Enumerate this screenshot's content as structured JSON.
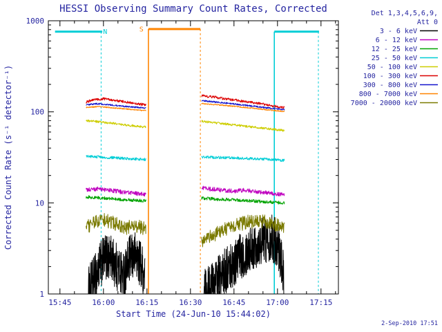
{
  "chart_data": {
    "type": "line",
    "title": "HESSI Observing Summary Count Rates, Corrected",
    "xlabel": "Start Time (24-Jun-10 15:44:02)",
    "ylabel": "Corrected Count Rate (s⁻¹ detector⁻¹)",
    "y_scale": "log",
    "y_domain": [
      1,
      1000
    ],
    "y_major_ticks": [
      "1",
      "10",
      "100",
      "1000"
    ],
    "x_domain": [
      41,
      141
    ],
    "x_unit": "minutes-after-15:00",
    "x_ticks": [
      {
        "t": 45,
        "label": "15:45"
      },
      {
        "t": 60,
        "label": "16:00"
      },
      {
        "t": 75,
        "label": "16:15"
      },
      {
        "t": 90,
        "label": "16:30"
      },
      {
        "t": 105,
        "label": "16:45"
      },
      {
        "t": 120,
        "label": "17:00"
      },
      {
        "t": 135,
        "label": "17:15"
      }
    ],
    "x_minor_step": 5,
    "grid": false,
    "legend": {
      "position": "top-right-outside",
      "header": [
        "Det 1,3,4,5,6,9,",
        "Att 0"
      ]
    },
    "indicators": [
      {
        "name": "night",
        "label": "N",
        "color": "#00cdd6",
        "bar_value": 760,
        "label_t": 60.6,
        "bars": [
          [
            43.3,
            59.6
          ],
          [
            118.9,
            134.3
          ]
        ],
        "lines": [
          {
            "t": 59.2,
            "style": "dashed"
          },
          {
            "t": 118.9,
            "style": "solid"
          },
          {
            "t": 134.1,
            "style": "dashed"
          }
        ]
      },
      {
        "name": "saa",
        "label": "S",
        "color": "#ff8400",
        "bar_value": 810,
        "label_t": 73.1,
        "bars": [
          [
            75.5,
            93.4
          ]
        ],
        "lines": [
          {
            "t": 75.5,
            "style": "solid"
          },
          {
            "t": 93.4,
            "style": "dashed"
          }
        ]
      }
    ],
    "series": [
      {
        "name": "3 - 6 keV",
        "color": "#000000",
        "noise": 0.6,
        "step": 0.06,
        "segments": [
          {
            "t": [
              54.8,
              57,
              59,
              61,
              63,
              65,
              67,
              69,
              71,
              73,
              74.3
            ],
            "v": [
              1.1,
              1.5,
              2.1,
              2.6,
              2.4,
              1.9,
              1.6,
              2.4,
              2.7,
              2.1,
              1.5
            ]
          },
          {
            "t": [
              94.5,
              97,
              100,
              103,
              106,
              109,
              112,
              115,
              118,
              120,
              121.5,
              122.2
            ],
            "v": [
              1.05,
              1.2,
              1.5,
              1.9,
              2.4,
              2.9,
              3.4,
              3.9,
              4.2,
              3.6,
              2.2,
              1.4
            ]
          }
        ]
      },
      {
        "name": "6 - 12 keV",
        "color": "#bf00bf",
        "noise": 0.055,
        "segments": [
          {
            "t": [
              54,
              58,
              62,
              66,
              70,
              74.6
            ],
            "v": [
              13.8,
              14.2,
              13.8,
              13.2,
              12.8,
              12.4
            ]
          },
          {
            "t": [
              93.8,
              97,
              101,
              105,
              109,
              113,
              117,
              120,
              122.3
            ],
            "v": [
              14.6,
              14.2,
              13.8,
              13.5,
              13.8,
              13.2,
              12.8,
              12.5,
              12.2
            ]
          }
        ]
      },
      {
        "name": "12 - 25 keV",
        "color": "#00a300",
        "noise": 0.04,
        "segments": [
          {
            "t": [
              54,
              60,
              66,
              74.6
            ],
            "v": [
              11.6,
              11.3,
              10.9,
              10.5
            ]
          },
          {
            "t": [
              93.8,
              99,
              105,
              111,
              117,
              122.3
            ],
            "v": [
              11.3,
              11.0,
              10.8,
              10.5,
              10.2,
              10.0
            ]
          }
        ]
      },
      {
        "name": "25 - 50 keV",
        "color": "#00cdd6",
        "noise": 0.035,
        "segments": [
          {
            "t": [
              54,
              60,
              67,
              74.6
            ],
            "v": [
              32.5,
              31.8,
              30.8,
              30.0
            ]
          },
          {
            "t": [
              93.8,
              100,
              107,
              114,
              120,
              122.3
            ],
            "v": [
              32.0,
              31.5,
              31.0,
              30.3,
              29.6,
              29.3
            ]
          }
        ]
      },
      {
        "name": "50 - 100 keV",
        "color": "#cdcd00",
        "noise": 0.028,
        "segments": [
          {
            "t": [
              54,
              58,
              63,
              68,
              74.6
            ],
            "v": [
              80,
              78,
              75,
              71.5,
              68
            ]
          },
          {
            "t": [
              93.8,
              98,
              103,
              109,
              115,
              120,
              122.3
            ],
            "v": [
              79,
              76,
              73,
              69.5,
              66,
              63.5,
              62
            ]
          }
        ]
      },
      {
        "name": "100 - 300 keV",
        "color": "#dc0000",
        "noise": 0.032,
        "segments": [
          {
            "t": [
              54,
              56.5,
              60,
              64.5,
              69.5,
              74.6
            ],
            "v": [
              128,
              136,
              139,
              133,
              126,
              119
            ]
          },
          {
            "t": [
              93.8,
              97.5,
              102,
              108,
              114,
              119,
              122.3
            ],
            "v": [
              150,
              146,
              139,
              131,
              123,
              115,
              111
            ]
          }
        ]
      },
      {
        "name": "300 - 800 keV",
        "color": "#1212cc",
        "noise": 0.02,
        "segments": [
          {
            "t": [
              54,
              57.5,
              62,
              68,
              74.6
            ],
            "v": [
              119,
              123,
              119.5,
              114.5,
              110
            ]
          },
          {
            "t": [
              93.8,
              99,
              105,
              111,
              117,
              122.3
            ],
            "v": [
              133,
              128,
              122,
              116,
              110,
              106
            ]
          }
        ]
      },
      {
        "name": "800 - 7000 keV",
        "color": "#ff8400",
        "noise": 0.015,
        "segments": [
          {
            "t": [
              54,
              58.5,
              64,
              70,
              74.6
            ],
            "v": [
              112,
              114,
              110,
              106,
              103
            ]
          },
          {
            "t": [
              93.8,
              100,
              106,
              112,
              118,
              122.3
            ],
            "v": [
              123,
              119,
              114,
              109,
              104,
              101
            ]
          }
        ]
      },
      {
        "name": "7000 - 20000 keV",
        "color": "#7a7a00",
        "noise": 0.18,
        "segments": [
          {
            "t": [
              54,
              57,
              60.5,
              64,
              67.5,
              71,
              74.6
            ],
            "v": [
              5.3,
              6.1,
              6.5,
              5.9,
              5.3,
              5.7,
              5.1
            ]
          },
          {
            "t": [
              93.8,
              97,
              101,
              105,
              109,
              113,
              117,
              120,
              122.3
            ],
            "v": [
              3.7,
              4.3,
              5.0,
              5.6,
              6.1,
              6.4,
              6.1,
              5.7,
              5.4
            ]
          }
        ]
      }
    ]
  },
  "footer": {
    "timestamp": "2-Sep-2010 17:51"
  },
  "style": {
    "text_color": "#2424a0",
    "frame_color": "#000000",
    "background": "#ffffff"
  }
}
